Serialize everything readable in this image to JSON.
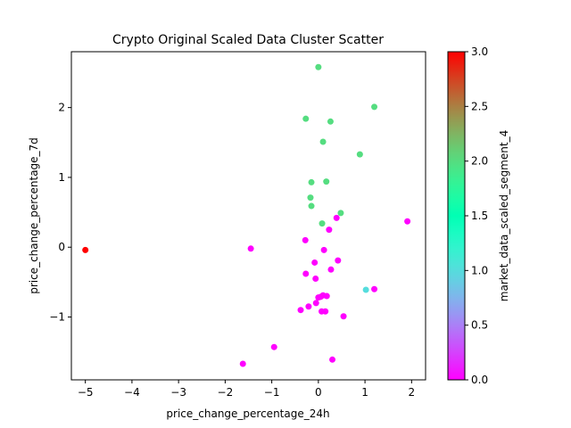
{
  "chart_data": {
    "type": "scatter",
    "title": "Crypto Original Scaled Data Cluster Scatter",
    "xlabel": "price_change_percentage_24h",
    "ylabel": "price_change_percentage_7d",
    "xlim": [
      -5.3,
      2.3
    ],
    "ylim": [
      -1.9,
      2.8
    ],
    "xticks": [
      -5,
      -4,
      -3,
      -2,
      -1,
      0,
      1,
      2
    ],
    "yticks": [
      -1,
      0,
      1,
      2
    ],
    "grid": false,
    "colorbar": {
      "label": "market_data_scaled_segment_4",
      "colormap": "rainbow",
      "range": [
        0,
        3
      ],
      "ticks": [
        "0.0",
        "0.5",
        "1.0",
        "1.5",
        "2.0",
        "2.5",
        "3.0"
      ]
    },
    "points": [
      {
        "x": -5.0,
        "y": -0.04,
        "c": 3
      },
      {
        "x": 1.02,
        "y": -0.61,
        "c": 1
      },
      {
        "x": 0.0,
        "y": 2.58,
        "c": 2
      },
      {
        "x": 1.2,
        "y": 2.01,
        "c": 2
      },
      {
        "x": -0.27,
        "y": 1.84,
        "c": 2
      },
      {
        "x": 0.26,
        "y": 1.8,
        "c": 2
      },
      {
        "x": 0.1,
        "y": 1.51,
        "c": 2
      },
      {
        "x": 0.89,
        "y": 1.33,
        "c": 2
      },
      {
        "x": -0.15,
        "y": 0.93,
        "c": 2
      },
      {
        "x": 0.17,
        "y": 0.94,
        "c": 2
      },
      {
        "x": -0.17,
        "y": 0.71,
        "c": 2
      },
      {
        "x": -0.15,
        "y": 0.59,
        "c": 2
      },
      {
        "x": 0.48,
        "y": 0.49,
        "c": 2
      },
      {
        "x": 0.08,
        "y": 0.34,
        "c": 2
      },
      {
        "x": 0.39,
        "y": 0.42,
        "c": 0
      },
      {
        "x": 1.91,
        "y": 0.37,
        "c": 0
      },
      {
        "x": 0.23,
        "y": 0.25,
        "c": 0
      },
      {
        "x": -0.28,
        "y": 0.1,
        "c": 0
      },
      {
        "x": -1.45,
        "y": -0.02,
        "c": 0
      },
      {
        "x": 0.12,
        "y": -0.04,
        "c": 0
      },
      {
        "x": -0.08,
        "y": -0.22,
        "c": 0
      },
      {
        "x": 0.42,
        "y": -0.19,
        "c": 0
      },
      {
        "x": -0.27,
        "y": -0.38,
        "c": 0
      },
      {
        "x": 0.27,
        "y": -0.32,
        "c": 0
      },
      {
        "x": -0.06,
        "y": -0.45,
        "c": 0
      },
      {
        "x": 1.2,
        "y": -0.6,
        "c": 0
      },
      {
        "x": 0.05,
        "y": -0.71,
        "c": 0
      },
      {
        "x": 0.1,
        "y": -0.69,
        "c": 0
      },
      {
        "x": 0.18,
        "y": -0.7,
        "c": 0
      },
      {
        "x": 0.0,
        "y": -0.72,
        "c": 0
      },
      {
        "x": -0.05,
        "y": -0.8,
        "c": 0
      },
      {
        "x": -0.21,
        "y": -0.85,
        "c": 0
      },
      {
        "x": -0.38,
        "y": -0.9,
        "c": 0
      },
      {
        "x": 0.07,
        "y": -0.92,
        "c": 0
      },
      {
        "x": 0.15,
        "y": -0.92,
        "c": 0
      },
      {
        "x": 0.54,
        "y": -0.99,
        "c": 0
      },
      {
        "x": -0.95,
        "y": -1.43,
        "c": 0
      },
      {
        "x": 0.3,
        "y": -1.61,
        "c": 0
      },
      {
        "x": -1.62,
        "y": -1.67,
        "c": 0
      }
    ]
  }
}
